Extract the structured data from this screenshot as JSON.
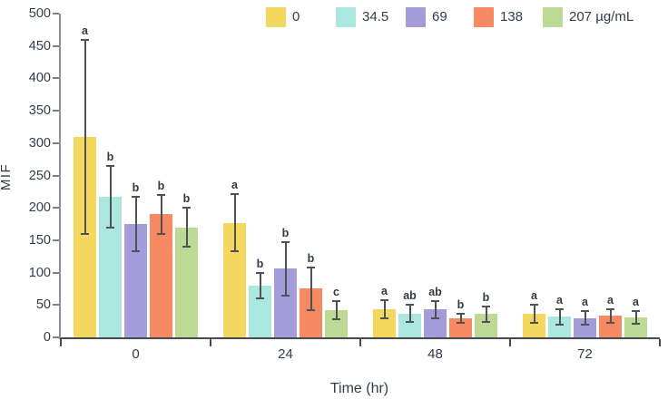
{
  "chart_data": {
    "type": "grouped_bar_with_error",
    "title": "",
    "xlabel": "Time (hr)",
    "ylabel": "MIF",
    "ylim": [
      0,
      500
    ],
    "ytick_step": 50,
    "grid": false,
    "legend_position": "top",
    "categories": [
      "0",
      "24",
      "48",
      "72"
    ],
    "series": [
      {
        "name": "0",
        "color": "#F3D75F",
        "values": [
          310,
          177,
          43,
          36
        ],
        "errors": [
          150,
          44,
          14,
          14
        ],
        "sig_letters": [
          "a",
          "a",
          "a",
          "a"
        ]
      },
      {
        "name": "34.5",
        "color": "#ABE6DF",
        "values": [
          217,
          80,
          37,
          32
        ],
        "errors": [
          48,
          20,
          13,
          12
        ],
        "sig_letters": [
          "b",
          "b",
          "ab",
          "a"
        ]
      },
      {
        "name": "69",
        "color": "#A49CD8",
        "values": [
          175,
          106,
          43,
          30
        ],
        "errors": [
          42,
          41,
          13,
          11
        ],
        "sig_letters": [
          "b",
          "b",
          "ab",
          "a"
        ]
      },
      {
        "name": "138",
        "color": "#F78A63",
        "values": [
          190,
          75,
          30,
          33
        ],
        "errors": [
          30,
          33,
          7,
          11
        ],
        "sig_letters": [
          "b",
          "b",
          "b",
          "a"
        ]
      },
      {
        "name": "207 µg/mL",
        "color": "#BDD996",
        "values": [
          170,
          42,
          36,
          31
        ],
        "errors": [
          30,
          14,
          12,
          10
        ],
        "sig_letters": [
          "b",
          "c",
          "b",
          "a"
        ]
      }
    ],
    "error_bar_color": "#4E5256",
    "axis_text_color": "#323D4B"
  }
}
